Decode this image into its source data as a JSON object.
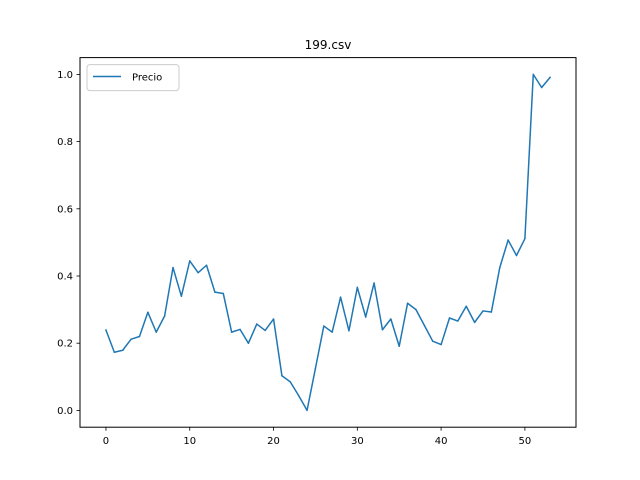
{
  "chart_data": {
    "type": "line",
    "title": "199.csv",
    "xlabel": "",
    "ylabel": "",
    "xlim": [
      -3.1,
      56.1
    ],
    "ylim": [
      -0.05,
      1.05
    ],
    "x_ticks": [
      0,
      10,
      20,
      30,
      40,
      50
    ],
    "y_ticks": [
      0.0,
      0.2,
      0.4,
      0.6,
      0.8,
      1.0
    ],
    "x_tick_labels": [
      "0",
      "10",
      "20",
      "30",
      "40",
      "50"
    ],
    "y_tick_labels": [
      "0.0",
      "0.2",
      "0.4",
      "0.6",
      "0.8",
      "1.0"
    ],
    "grid": false,
    "legend_position": "top-left",
    "series": [
      {
        "name": "Precio",
        "color": "#1f77b4",
        "x": [
          0,
          1,
          2,
          3,
          4,
          5,
          6,
          7,
          8,
          9,
          10,
          11,
          12,
          13,
          14,
          15,
          16,
          17,
          18,
          19,
          20,
          21,
          22,
          23,
          24,
          25,
          26,
          27,
          28,
          29,
          30,
          31,
          32,
          33,
          34,
          35,
          36,
          37,
          38,
          39,
          40,
          41,
          42,
          43,
          44,
          45,
          46,
          47,
          48,
          49,
          50,
          51,
          52,
          53
        ],
        "values": [
          0.239,
          0.173,
          0.179,
          0.212,
          0.22,
          0.292,
          0.233,
          0.281,
          0.425,
          0.34,
          0.445,
          0.41,
          0.432,
          0.352,
          0.348,
          0.233,
          0.241,
          0.2,
          0.257,
          0.238,
          0.272,
          0.103,
          0.085,
          0.044,
          0.0,
          0.125,
          0.251,
          0.233,
          0.337,
          0.237,
          0.366,
          0.278,
          0.379,
          0.24,
          0.272,
          0.191,
          0.319,
          0.3,
          0.253,
          0.206,
          0.196,
          0.275,
          0.266,
          0.31,
          0.262,
          0.296,
          0.293,
          0.425,
          0.507,
          0.461,
          0.511,
          1.0,
          0.961,
          0.991
        ]
      }
    ]
  }
}
